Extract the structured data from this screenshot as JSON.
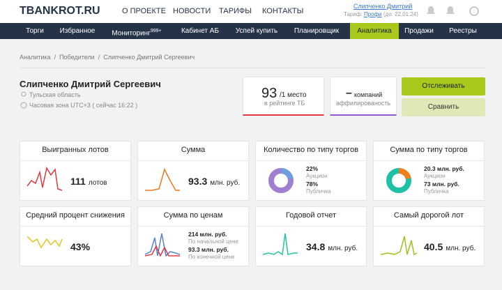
{
  "header": {
    "logo": "TBANKROT.RU",
    "nav": [
      "О ПРОЕКТЕ",
      "НОВОСТИ",
      "ТАРИФЫ",
      "КОНТАКТЫ"
    ],
    "user": "Слипченко Дмитрий",
    "tariff_label": "Тариф:",
    "tariff": "Профи",
    "tariff_until": "(до: 22.01.24)"
  },
  "menu": {
    "items": [
      "Торги",
      "Избранное",
      "Мониторинг",
      "Кабинет АБ",
      "Успей купить",
      "Планировщик",
      "Аналитика",
      "Продажи",
      "Реестры"
    ],
    "badge": "999+"
  },
  "breadcrumb": [
    "Аналитика",
    "Победители",
    "Слипченко Дмитрий Сергеевич"
  ],
  "profile": {
    "name": "Слипченко Дмитрий Сергеевич",
    "region": "Тульская область",
    "timezone": "Часовая зона UTC+3 ( сейчас 16:22 )"
  },
  "rank": {
    "value": "93",
    "place": "/1 место",
    "caption": "в рейтинге ТБ"
  },
  "affiliates": {
    "value": "–",
    "unit": "компаний",
    "caption": "аффилированость"
  },
  "buttons": {
    "track": "Отслеживать",
    "compare": "Сравнить"
  },
  "cards": [
    {
      "title": "Выигранных лотов",
      "value": "111",
      "unit": "лотов"
    },
    {
      "title": "Сумма",
      "value": "93.3",
      "unit": "млн. руб."
    },
    {
      "title": "Количество по типу торгов",
      "entries": [
        {
          "value": "22%",
          "label": "Аукцион"
        },
        {
          "value": "78%",
          "label": "Публичка"
        }
      ]
    },
    {
      "title": "Сумма по типу торгов",
      "entries": [
        {
          "value": "20.3 млн. руб.",
          "label": "Аукцион"
        },
        {
          "value": "73 млн. руб.",
          "label": "Публичка"
        }
      ]
    },
    {
      "title": "Средний процент снижения",
      "value": "43%"
    },
    {
      "title": "Сумма по ценам",
      "entries": [
        {
          "value": "214 млн. руб.",
          "label": "По начальной цене"
        },
        {
          "value": "93.3 млн. руб.",
          "label": "По конечной цене"
        }
      ]
    },
    {
      "title": "Годовой отчет",
      "value": "34.8",
      "unit": "млн. руб."
    },
    {
      "title": "Самый дорогой лот",
      "value": "40.5",
      "unit": "млн. руб."
    }
  ]
}
